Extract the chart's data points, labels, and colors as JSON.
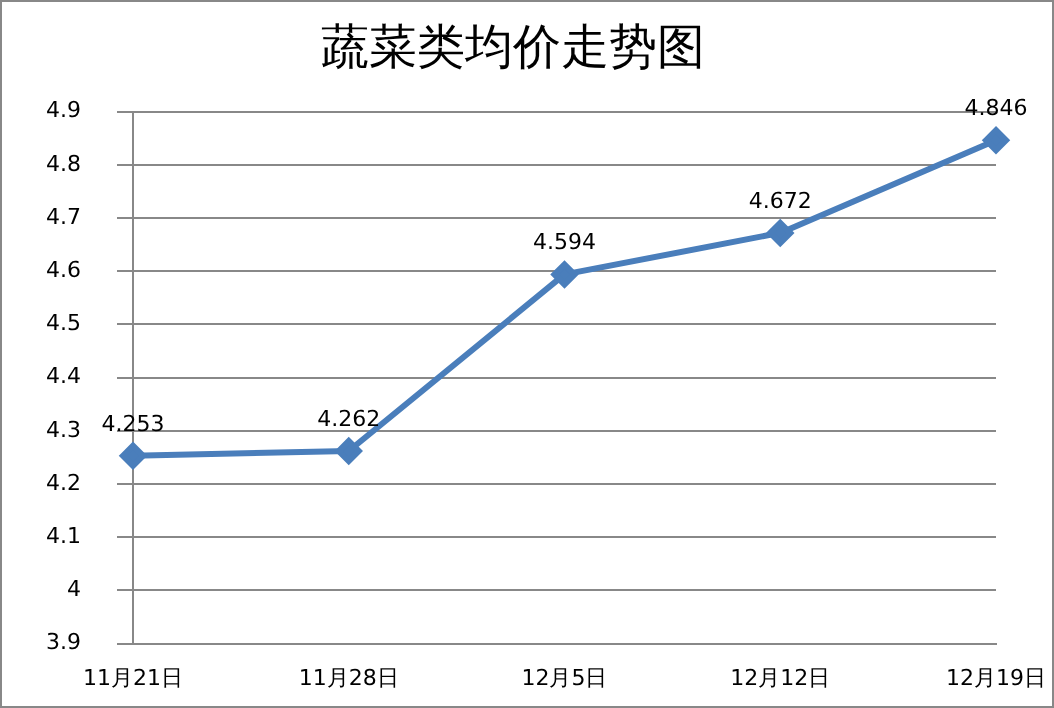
{
  "chart_data": {
    "type": "line",
    "title": "蔬菜类均价走势图",
    "categories": [
      "11月21日",
      "11月28日",
      "12月5日",
      "12月12日",
      "12月19日"
    ],
    "series": [
      {
        "color": "#4a7ebb",
        "values": [
          4.253,
          4.262,
          4.594,
          4.672,
          4.846
        ]
      }
    ],
    "ylim": [
      3.9,
      4.9
    ],
    "yticks": [
      3.9,
      4,
      4.1,
      4.2,
      4.3,
      4.4,
      4.5,
      4.6,
      4.7,
      4.8,
      4.9
    ],
    "grid": "y",
    "legend": false,
    "marker": "diamond",
    "line_style": "solid",
    "data_labels": true
  }
}
